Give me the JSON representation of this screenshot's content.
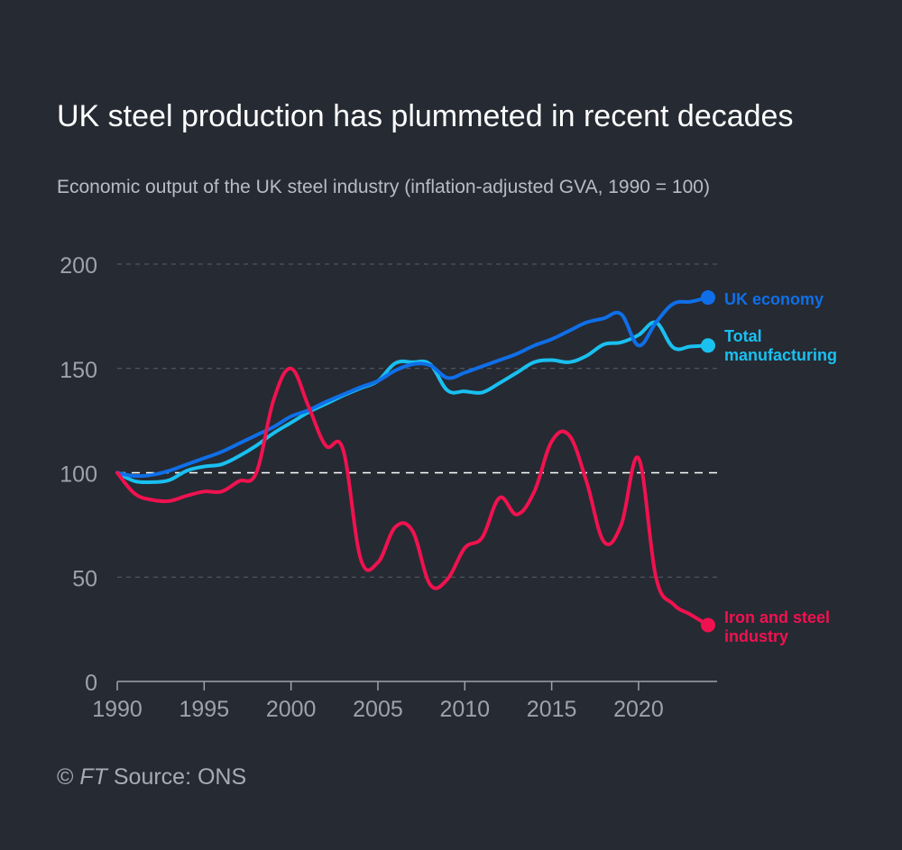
{
  "header": {
    "title": "UK steel production has plummeted in recent decades",
    "subtitle": "Economic output of the UK steel industry (inflation-adjusted GVA, 1990 = 100)"
  },
  "footer": {
    "copyright": "© ",
    "brand": "FT",
    "source": " Source: ONS"
  },
  "colors": {
    "background": "#262a33",
    "uk_economy": "#0f6fe8",
    "total_manufacturing": "#19c0f0",
    "iron_steel": "#f0124f",
    "grid": "#5b5f68",
    "axis_text": "#9ea2aa",
    "baseline": "#ffffff"
  },
  "chart_data": {
    "type": "line",
    "xlim": [
      1990,
      2024
    ],
    "ylim": [
      0,
      200
    ],
    "x_ticks": [
      1990,
      1995,
      2000,
      2005,
      2010,
      2015,
      2020
    ],
    "x_tick_labels": [
      "1990",
      "1995",
      "2000",
      "2005",
      "2010",
      "2015",
      "2020"
    ],
    "y_ticks": [
      0,
      50,
      100,
      150,
      200
    ],
    "y_tick_labels": [
      "0",
      "50",
      "100",
      "150",
      "200"
    ],
    "grid": true,
    "reference_line": 100,
    "series": [
      {
        "key": "uk_economy",
        "name": "UK economy",
        "label_lines": [
          "UK economy"
        ],
        "x": [
          1990,
          1991,
          1992,
          1993,
          1994,
          1995,
          1996,
          1997,
          1998,
          1999,
          2000,
          2001,
          2002,
          2003,
          2004,
          2005,
          2006,
          2007,
          2008,
          2009,
          2010,
          2011,
          2012,
          2013,
          2014,
          2015,
          2016,
          2017,
          2018,
          2019,
          2020,
          2021,
          2022,
          2023,
          2024
        ],
        "values": [
          100,
          98.5,
          99,
          101,
          104,
          107,
          110,
          114,
          118,
          122,
          127,
          130,
          134,
          137.5,
          141,
          144,
          149,
          152,
          151.5,
          145.5,
          148,
          151,
          154,
          157,
          161,
          164,
          168,
          172,
          174,
          176,
          161,
          172,
          181,
          182,
          184
        ]
      },
      {
        "key": "total_manufacturing",
        "name": "Total manufacturing",
        "label_lines": [
          "Total",
          "manufacturing"
        ],
        "x": [
          1990,
          1991,
          1992,
          1993,
          1994,
          1995,
          1996,
          1997,
          1998,
          1999,
          2000,
          2001,
          2002,
          2003,
          2004,
          2005,
          2006,
          2007,
          2008,
          2009,
          2010,
          2011,
          2012,
          2013,
          2014,
          2015,
          2016,
          2017,
          2018,
          2019,
          2020,
          2021,
          2022,
          2023,
          2024
        ],
        "values": [
          100,
          96,
          95.5,
          96.5,
          101,
          103,
          104,
          108,
          113,
          119,
          124,
          129,
          133,
          137,
          140.5,
          144,
          152.5,
          153,
          152,
          139.5,
          139,
          138.5,
          143,
          148,
          153,
          154,
          153,
          156,
          161.5,
          162.5,
          166,
          172,
          160,
          160.5,
          161
        ]
      },
      {
        "key": "iron_steel",
        "name": "Iron and steel industry",
        "label_lines": [
          "Iron and steel",
          "industry"
        ],
        "x": [
          1990,
          1991,
          1992,
          1993,
          1994,
          1995,
          1996,
          1997,
          1998,
          1999,
          2000,
          2001,
          2002,
          2003,
          2004,
          2005,
          2006,
          2007,
          2008,
          2009,
          2010,
          2011,
          2012,
          2013,
          2014,
          2015,
          2016,
          2017,
          2018,
          2019,
          2020,
          2021,
          2022,
          2023,
          2024
        ],
        "values": [
          100,
          90,
          87,
          86.5,
          89,
          91,
          91,
          96,
          100,
          135,
          150,
          132,
          113,
          111,
          59,
          57,
          74,
          72,
          46.5,
          49,
          64,
          69,
          88,
          80,
          91,
          115,
          118,
          96,
          67,
          75,
          107,
          50,
          37,
          32,
          27
        ]
      }
    ]
  }
}
